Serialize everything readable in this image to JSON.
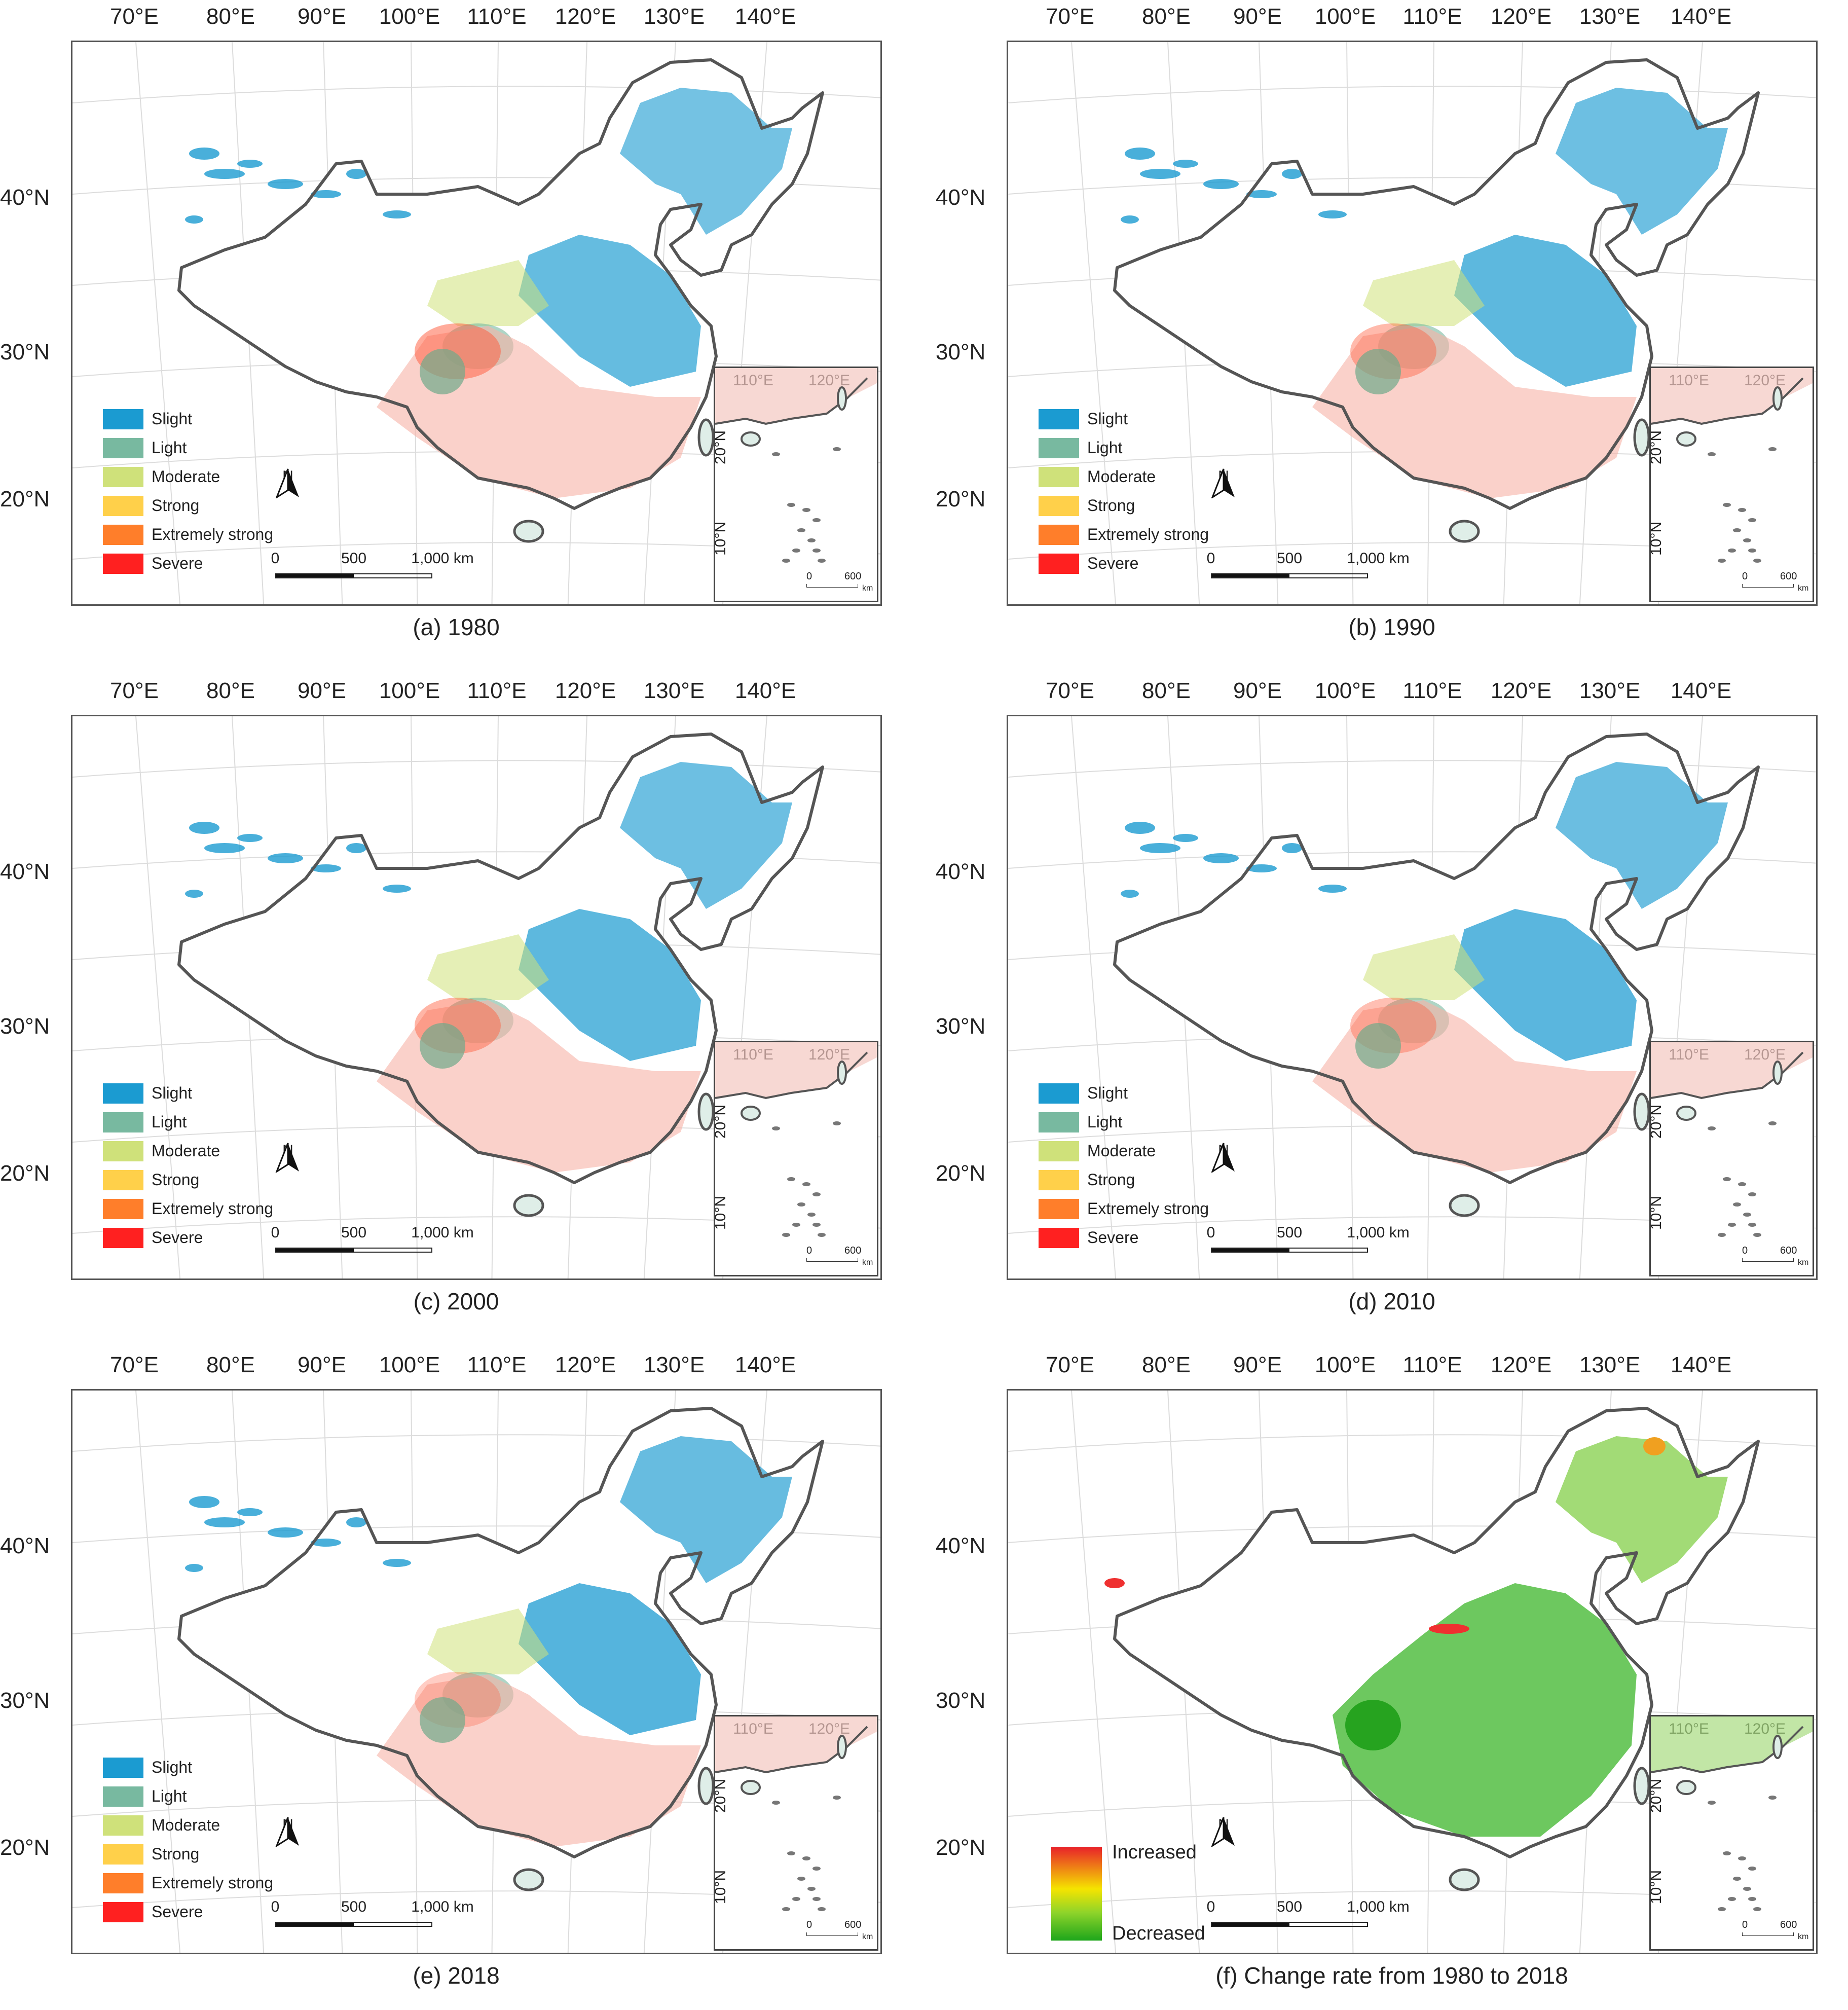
{
  "longitude_labels": [
    "70°E",
    "80°E",
    "90°E",
    "100°E",
    "110°E",
    "120°E",
    "130°E",
    "140°E"
  ],
  "latitude_labels": [
    "40°N",
    "30°N",
    "20°N"
  ],
  "legend_classes": [
    {
      "label": "Slight",
      "color": "#1b9bd1"
    },
    {
      "label": "Light",
      "color": "#78b9a0"
    },
    {
      "label": "Moderate",
      "color": "#cfe17a"
    },
    {
      "label": "Strong",
      "color": "#ffd04a"
    },
    {
      "label": "Extremely strong",
      "color": "#ff7e2a"
    },
    {
      "label": "Severe",
      "color": "#ff2020"
    }
  ],
  "north_label": "N",
  "scale_labels": [
    "0",
    "500",
    "1,000 km"
  ],
  "inset": {
    "lon_labels": [
      "110°E",
      "120°E"
    ],
    "lat_labels": [
      "20°N",
      "10°N"
    ],
    "scale": {
      "start": "0",
      "end": "600",
      "unit": "km"
    }
  },
  "change_legend": {
    "increased": "Increased",
    "decreased": "Decreased"
  },
  "panels": [
    {
      "caption": "(a) 1980",
      "kind": "classes",
      "mix": {
        "blue": 0.75,
        "red": 0.85
      }
    },
    {
      "caption": "(b) 1990",
      "kind": "classes",
      "mix": {
        "blue": 0.8,
        "red": 0.7
      }
    },
    {
      "caption": "(c) 2000",
      "kind": "classes",
      "mix": {
        "blue": 0.8,
        "red": 0.75
      }
    },
    {
      "caption": "(d) 2010",
      "kind": "classes",
      "mix": {
        "blue": 0.82,
        "red": 0.65
      }
    },
    {
      "caption": "(e) 2018",
      "kind": "classes",
      "mix": {
        "blue": 0.85,
        "red": 0.5
      }
    },
    {
      "caption": "(f) Change rate from 1980 to 2018",
      "kind": "change",
      "mix": {
        "blue": 0,
        "red": 0
      }
    }
  ]
}
